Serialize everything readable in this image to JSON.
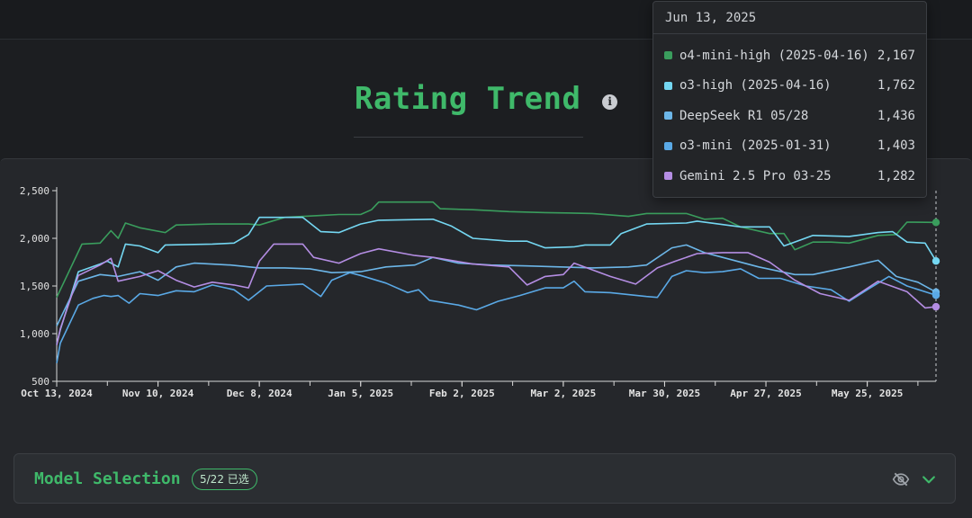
{
  "page": {
    "title": "Rating Trend",
    "info_icon": "info-icon"
  },
  "tooltip": {
    "date": "Jun 13, 2025",
    "rows": [
      {
        "name": "o4-mini-high (2025-04-16)",
        "value": "2,167",
        "color": "#3a9d5d"
      },
      {
        "name": "o3-high (2025-04-16)",
        "value": "1,762",
        "color": "#74d7f2"
      },
      {
        "name": "DeepSeek R1 05/28",
        "value": "1,436",
        "color": "#6cb6e8"
      },
      {
        "name": "o3-mini (2025-01-31)",
        "value": "1,403",
        "color": "#5aa9e6"
      },
      {
        "name": "Gemini 2.5 Pro 03-25",
        "value": "1,282",
        "color": "#b48de3"
      }
    ]
  },
  "model_selection": {
    "label": "Model Selection",
    "badge": "5/22 已选",
    "visibility_icon": "eye-off-icon",
    "toggle_icon": "chevron-down-icon"
  },
  "chart_data": {
    "type": "line",
    "x_axis_type": "date",
    "xlim": [
      "2024-10-13",
      "2025-06-13"
    ],
    "ylim": [
      500,
      2500
    ],
    "yticks": [
      500,
      1000,
      1500,
      2000,
      2500
    ],
    "ytick_labels": [
      "500",
      "1,000",
      "1,500",
      "2,000",
      "2,500"
    ],
    "xticks": [
      "2024-10-13",
      "2024-11-10",
      "2024-12-08",
      "2025-01-05",
      "2025-02-02",
      "2025-03-02",
      "2025-03-30",
      "2025-04-27",
      "2025-05-25"
    ],
    "xtick_labels": [
      "Oct 13, 2024",
      "Nov 10, 2024",
      "Dec 8, 2024",
      "Jan 5, 2025",
      "Feb 2, 2025",
      "Mar 2, 2025",
      "Mar 30, 2025",
      "Apr 27, 2025",
      "May 25, 2025"
    ],
    "hover_date": "2025-06-13",
    "grid": false,
    "series": [
      {
        "name": "o4-mini-high (2025-04-16)",
        "color": "#3a9d5d",
        "points": [
          [
            "2024-10-13",
            1380
          ],
          [
            "2024-10-20",
            1940
          ],
          [
            "2024-10-25",
            1950
          ],
          [
            "2024-10-28",
            2080
          ],
          [
            "2024-10-30",
            2000
          ],
          [
            "2024-11-01",
            2160
          ],
          [
            "2024-11-05",
            2110
          ],
          [
            "2024-11-12",
            2060
          ],
          [
            "2024-11-15",
            2140
          ],
          [
            "2024-11-25",
            2150
          ],
          [
            "2024-12-05",
            2150
          ],
          [
            "2024-12-08",
            2140
          ],
          [
            "2024-12-15",
            2220
          ],
          [
            "2024-12-25",
            2240
          ],
          [
            "2024-12-30",
            2250
          ],
          [
            "2025-01-05",
            2250
          ],
          [
            "2025-01-08",
            2300
          ],
          [
            "2025-01-10",
            2380
          ],
          [
            "2025-01-25",
            2380
          ],
          [
            "2025-01-27",
            2310
          ],
          [
            "2025-02-05",
            2300
          ],
          [
            "2025-02-15",
            2280
          ],
          [
            "2025-02-25",
            2270
          ],
          [
            "2025-03-10",
            2260
          ],
          [
            "2025-03-20",
            2230
          ],
          [
            "2025-03-25",
            2260
          ],
          [
            "2025-04-05",
            2260
          ],
          [
            "2025-04-10",
            2200
          ],
          [
            "2025-04-15",
            2210
          ],
          [
            "2025-04-20",
            2120
          ],
          [
            "2025-04-28",
            2050
          ],
          [
            "2025-05-02",
            2050
          ],
          [
            "2025-05-05",
            1880
          ],
          [
            "2025-05-10",
            1960
          ],
          [
            "2025-05-15",
            1960
          ],
          [
            "2025-05-20",
            1950
          ],
          [
            "2025-05-28",
            2030
          ],
          [
            "2025-06-02",
            2040
          ],
          [
            "2025-06-05",
            2170
          ],
          [
            "2025-06-13",
            2167
          ]
        ]
      },
      {
        "name": "o3-high (2025-04-16)",
        "color": "#74d7f2",
        "points": [
          [
            "2024-10-13",
            890
          ],
          [
            "2024-10-14",
            1040
          ],
          [
            "2024-10-19",
            1650
          ],
          [
            "2024-10-25",
            1730
          ],
          [
            "2024-10-27",
            1760
          ],
          [
            "2024-10-30",
            1700
          ],
          [
            "2024-11-01",
            1940
          ],
          [
            "2024-11-05",
            1920
          ],
          [
            "2024-11-10",
            1850
          ],
          [
            "2024-11-12",
            1930
          ],
          [
            "2024-11-25",
            1940
          ],
          [
            "2024-12-01",
            1950
          ],
          [
            "2024-12-05",
            2040
          ],
          [
            "2024-12-08",
            2220
          ],
          [
            "2024-12-20",
            2220
          ],
          [
            "2024-12-25",
            2070
          ],
          [
            "2024-12-30",
            2060
          ],
          [
            "2025-01-05",
            2150
          ],
          [
            "2025-01-10",
            2190
          ],
          [
            "2025-01-25",
            2200
          ],
          [
            "2025-01-30",
            2130
          ],
          [
            "2025-02-05",
            2000
          ],
          [
            "2025-02-15",
            1970
          ],
          [
            "2025-02-20",
            1970
          ],
          [
            "2025-02-25",
            1900
          ],
          [
            "2025-03-05",
            1910
          ],
          [
            "2025-03-08",
            1930
          ],
          [
            "2025-03-15",
            1930
          ],
          [
            "2025-03-18",
            2050
          ],
          [
            "2025-03-25",
            2150
          ],
          [
            "2025-04-05",
            2160
          ],
          [
            "2025-04-08",
            2180
          ],
          [
            "2025-04-20",
            2120
          ],
          [
            "2025-04-28",
            2120
          ],
          [
            "2025-05-02",
            1920
          ],
          [
            "2025-05-10",
            2030
          ],
          [
            "2025-05-20",
            2020
          ],
          [
            "2025-05-28",
            2060
          ],
          [
            "2025-06-01",
            2070
          ],
          [
            "2025-06-05",
            1960
          ],
          [
            "2025-06-10",
            1950
          ],
          [
            "2025-06-13",
            1762
          ]
        ]
      },
      {
        "name": "DeepSeek R1 05/28",
        "color": "#6cb6e8",
        "points": [
          [
            "2024-10-13",
            1080
          ],
          [
            "2024-10-19",
            1550
          ],
          [
            "2024-10-25",
            1620
          ],
          [
            "2024-10-30",
            1600
          ],
          [
            "2024-11-05",
            1650
          ],
          [
            "2024-11-10",
            1560
          ],
          [
            "2024-11-15",
            1700
          ],
          [
            "2024-11-20",
            1740
          ],
          [
            "2024-11-30",
            1720
          ],
          [
            "2024-12-08",
            1690
          ],
          [
            "2024-12-15",
            1690
          ],
          [
            "2024-12-22",
            1680
          ],
          [
            "2024-12-28",
            1640
          ],
          [
            "2025-01-05",
            1650
          ],
          [
            "2025-01-12",
            1700
          ],
          [
            "2025-01-20",
            1720
          ],
          [
            "2025-01-25",
            1800
          ],
          [
            "2025-02-01",
            1740
          ],
          [
            "2025-02-10",
            1720
          ],
          [
            "2025-02-20",
            1710
          ],
          [
            "2025-03-01",
            1700
          ],
          [
            "2025-03-10",
            1690
          ],
          [
            "2025-03-20",
            1700
          ],
          [
            "2025-03-25",
            1720
          ],
          [
            "2025-04-01",
            1900
          ],
          [
            "2025-04-05",
            1930
          ],
          [
            "2025-04-10",
            1850
          ],
          [
            "2025-04-15",
            1800
          ],
          [
            "2025-04-25",
            1700
          ],
          [
            "2025-05-05",
            1620
          ],
          [
            "2025-05-10",
            1620
          ],
          [
            "2025-05-20",
            1700
          ],
          [
            "2025-05-28",
            1770
          ],
          [
            "2025-06-02",
            1600
          ],
          [
            "2025-06-08",
            1540
          ],
          [
            "2025-06-13",
            1436
          ]
        ]
      },
      {
        "name": "o3-mini (2025-01-31)",
        "color": "#5aa9e6",
        "points": [
          [
            "2024-10-13",
            690
          ],
          [
            "2024-10-14",
            900
          ],
          [
            "2024-10-19",
            1300
          ],
          [
            "2024-10-23",
            1370
          ],
          [
            "2024-10-26",
            1400
          ],
          [
            "2024-10-28",
            1390
          ],
          [
            "2024-10-30",
            1400
          ],
          [
            "2024-11-02",
            1320
          ],
          [
            "2024-11-05",
            1420
          ],
          [
            "2024-11-10",
            1400
          ],
          [
            "2024-11-15",
            1450
          ],
          [
            "2024-11-20",
            1440
          ],
          [
            "2024-11-25",
            1510
          ],
          [
            "2024-12-01",
            1460
          ],
          [
            "2024-12-05",
            1350
          ],
          [
            "2024-12-10",
            1500
          ],
          [
            "2024-12-20",
            1520
          ],
          [
            "2024-12-25",
            1390
          ],
          [
            "2024-12-28",
            1560
          ],
          [
            "2025-01-02",
            1640
          ],
          [
            "2025-01-05",
            1610
          ],
          [
            "2025-01-12",
            1530
          ],
          [
            "2025-01-18",
            1430
          ],
          [
            "2025-01-21",
            1460
          ],
          [
            "2025-01-24",
            1350
          ],
          [
            "2025-02-01",
            1300
          ],
          [
            "2025-02-06",
            1250
          ],
          [
            "2025-02-12",
            1340
          ],
          [
            "2025-02-18",
            1400
          ],
          [
            "2025-02-25",
            1480
          ],
          [
            "2025-03-02",
            1480
          ],
          [
            "2025-03-05",
            1550
          ],
          [
            "2025-03-08",
            1440
          ],
          [
            "2025-03-15",
            1430
          ],
          [
            "2025-03-25",
            1390
          ],
          [
            "2025-03-28",
            1380
          ],
          [
            "2025-04-01",
            1600
          ],
          [
            "2025-04-05",
            1660
          ],
          [
            "2025-04-10",
            1640
          ],
          [
            "2025-04-15",
            1650
          ],
          [
            "2025-04-20",
            1680
          ],
          [
            "2025-04-25",
            1580
          ],
          [
            "2025-05-01",
            1580
          ],
          [
            "2025-05-08",
            1500
          ],
          [
            "2025-05-15",
            1460
          ],
          [
            "2025-05-20",
            1340
          ],
          [
            "2025-05-25",
            1460
          ],
          [
            "2025-05-31",
            1600
          ],
          [
            "2025-06-05",
            1500
          ],
          [
            "2025-06-13",
            1403
          ]
        ]
      },
      {
        "name": "Gemini 2.5 Pro 03-25",
        "color": "#b48de3",
        "points": [
          [
            "2024-10-13",
            880
          ],
          [
            "2024-10-14",
            1050
          ],
          [
            "2024-10-19",
            1610
          ],
          [
            "2024-10-25",
            1720
          ],
          [
            "2024-10-28",
            1790
          ],
          [
            "2024-10-30",
            1550
          ],
          [
            "2024-11-05",
            1600
          ],
          [
            "2024-11-10",
            1660
          ],
          [
            "2024-11-15",
            1560
          ],
          [
            "2024-11-20",
            1490
          ],
          [
            "2024-11-25",
            1540
          ],
          [
            "2024-12-01",
            1510
          ],
          [
            "2024-12-05",
            1480
          ],
          [
            "2024-12-08",
            1760
          ],
          [
            "2024-12-12",
            1940
          ],
          [
            "2024-12-20",
            1940
          ],
          [
            "2024-12-23",
            1800
          ],
          [
            "2024-12-30",
            1740
          ],
          [
            "2025-01-05",
            1840
          ],
          [
            "2025-01-10",
            1890
          ],
          [
            "2025-01-20",
            1820
          ],
          [
            "2025-01-25",
            1800
          ],
          [
            "2025-02-05",
            1730
          ],
          [
            "2025-02-15",
            1700
          ],
          [
            "2025-02-20",
            1510
          ],
          [
            "2025-02-25",
            1600
          ],
          [
            "2025-03-02",
            1620
          ],
          [
            "2025-03-05",
            1740
          ],
          [
            "2025-03-15",
            1600
          ],
          [
            "2025-03-22",
            1520
          ],
          [
            "2025-03-28",
            1690
          ],
          [
            "2025-04-02",
            1760
          ],
          [
            "2025-04-08",
            1840
          ],
          [
            "2025-04-15",
            1850
          ],
          [
            "2025-04-22",
            1850
          ],
          [
            "2025-04-28",
            1750
          ],
          [
            "2025-05-05",
            1560
          ],
          [
            "2025-05-12",
            1420
          ],
          [
            "2025-05-20",
            1350
          ],
          [
            "2025-05-28",
            1550
          ],
          [
            "2025-06-05",
            1440
          ],
          [
            "2025-06-10",
            1270
          ],
          [
            "2025-06-13",
            1282
          ]
        ]
      }
    ]
  }
}
